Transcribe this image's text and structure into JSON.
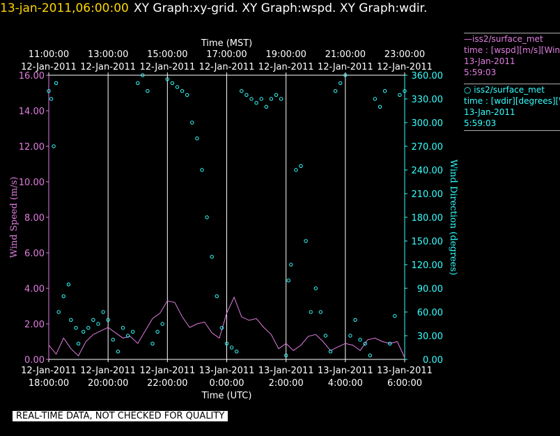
{
  "header": {
    "date_time": "13-jan-2011,06:00:00",
    "graphs": "XY Graph:xy-grid.  XY Graph:wspd.  XY Graph:wdir."
  },
  "legend": [
    {
      "line1": "—iss2/surface_met",
      "line2": "time : [wspd][m/s][Wind",
      "line3": "13-Jan-2011",
      "line4": "5:59:03"
    },
    {
      "line1": "○ iss2/surface_met",
      "line2": "time : [wdir][degrees][W",
      "line3": "13-Jan-2011",
      "line4": "5:59:03"
    }
  ],
  "footer": {
    "note": "REAL-TIME DATA, NOT CHECKED FOR QUALITY"
  },
  "colors": {
    "wspd": "#e07ee0",
    "wdir": "#35ffff",
    "axis": "#ffffff",
    "background": "#000000"
  },
  "chart_data": {
    "type": "scatter",
    "top_axis_label": "Time (MST)",
    "bottom_axis_label": "Time (UTC)",
    "ylabel_left": "Wind Speed (m/s)",
    "ylabel_right": "Wind Direction (degrees)",
    "xlim_utc_hours": [
      18,
      30
    ],
    "ylim_left": [
      0,
      16
    ],
    "ylim_right": [
      0,
      360
    ],
    "grid": "vertical lines every 2 hours",
    "top_ticks": [
      {
        "time": "11:00:00",
        "date": "12-Jan-2011"
      },
      {
        "time": "13:00:00",
        "date": "12-Jan-2011"
      },
      {
        "time": "15:00:00",
        "date": "12-Jan-2011"
      },
      {
        "time": "17:00:00",
        "date": "12-Jan-2011"
      },
      {
        "time": "19:00:00",
        "date": "12-Jan-2011"
      },
      {
        "time": "21:00:00",
        "date": "12-Jan-2011"
      },
      {
        "time": "23:00:00",
        "date": "12-Jan-2011"
      }
    ],
    "bottom_ticks": [
      {
        "date": "12-Jan-2011",
        "time": "18:00:00"
      },
      {
        "date": "12-Jan-2011",
        "time": "20:00:00"
      },
      {
        "date": "12-Jan-2011",
        "time": "22:00:00"
      },
      {
        "date": "13-Jan-2011",
        "time": "0:00:00"
      },
      {
        "date": "13-Jan-2011",
        "time": "2:00:00"
      },
      {
        "date": "13-Jan-2011",
        "time": "4:00:00"
      },
      {
        "date": "13-Jan-2011",
        "time": "6:00:00"
      }
    ],
    "left_ticks": [
      "0.00",
      "2.00",
      "4.00",
      "6.00",
      "8.00",
      "10.00",
      "12.00",
      "14.00",
      "16.00"
    ],
    "right_ticks": [
      "0.00",
      "30.00",
      "60.00",
      "90.00",
      "120.00",
      "150.00",
      "180.00",
      "210.00",
      "240.00",
      "270.00",
      "300.00",
      "330.00",
      "360.00"
    ],
    "series": [
      {
        "name": "iss2/surface_met time : [wspd][m/s][Wind",
        "style": "line",
        "axis": "left",
        "x": [
          "12-Jan-2011 18:00",
          "12-Jan-2011 18:15",
          "12-Jan-2011 18:30",
          "12-Jan-2011 18:45",
          "12-Jan-2011 19:00",
          "12-Jan-2011 19:15",
          "12-Jan-2011 19:30",
          "12-Jan-2011 19:45",
          "12-Jan-2011 20:00",
          "12-Jan-2011 20:15",
          "12-Jan-2011 20:30",
          "12-Jan-2011 20:45",
          "12-Jan-2011 21:00",
          "12-Jan-2011 21:15",
          "12-Jan-2011 21:30",
          "12-Jan-2011 21:45",
          "12-Jan-2011 22:00",
          "12-Jan-2011 22:15",
          "12-Jan-2011 22:30",
          "12-Jan-2011 22:45",
          "12-Jan-2011 23:00",
          "12-Jan-2011 23:15",
          "12-Jan-2011 23:30",
          "12-Jan-2011 23:45",
          "13-Jan-2011 00:00",
          "13-Jan-2011 00:15",
          "13-Jan-2011 00:30",
          "13-Jan-2011 00:45",
          "13-Jan-2011 01:00",
          "13-Jan-2011 01:15",
          "13-Jan-2011 01:30",
          "13-Jan-2011 01:45",
          "13-Jan-2011 02:00",
          "13-Jan-2011 02:15",
          "13-Jan-2011 02:30",
          "13-Jan-2011 02:45",
          "13-Jan-2011 03:00",
          "13-Jan-2011 03:15",
          "13-Jan-2011 03:30",
          "13-Jan-2011 03:45",
          "13-Jan-2011 04:00",
          "13-Jan-2011 04:15",
          "13-Jan-2011 04:30",
          "13-Jan-2011 04:45",
          "13-Jan-2011 05:00",
          "13-Jan-2011 05:15",
          "13-Jan-2011 05:30",
          "13-Jan-2011 05:45",
          "13-Jan-2011 06:00"
        ],
        "y": [
          0.8,
          0.3,
          1.2,
          0.6,
          0.2,
          1.0,
          1.4,
          1.6,
          1.8,
          1.5,
          1.2,
          1.3,
          0.9,
          1.6,
          2.3,
          2.6,
          3.3,
          3.2,
          2.4,
          1.8,
          2.0,
          2.1,
          1.5,
          1.2,
          2.6,
          3.5,
          2.4,
          2.2,
          2.3,
          1.8,
          1.4,
          0.6,
          0.9,
          0.5,
          0.8,
          1.3,
          1.4,
          1.0,
          0.5,
          0.7,
          0.9,
          0.8,
          0.5,
          1.1,
          1.2,
          1.0,
          0.9,
          1.0,
          0.1
        ]
      },
      {
        "name": "iss2/surface_met time : [wdir][degrees][W",
        "style": "markers",
        "axis": "right",
        "x": [
          "12-Jan-2011 18:00",
          "12-Jan-2011 18:05",
          "12-Jan-2011 18:10",
          "12-Jan-2011 18:15",
          "12-Jan-2011 18:20",
          "12-Jan-2011 18:30",
          "12-Jan-2011 18:40",
          "12-Jan-2011 18:45",
          "12-Jan-2011 18:55",
          "12-Jan-2011 19:00",
          "12-Jan-2011 19:10",
          "12-Jan-2011 19:20",
          "12-Jan-2011 19:30",
          "12-Jan-2011 19:40",
          "12-Jan-2011 19:50",
          "12-Jan-2011 20:00",
          "12-Jan-2011 20:10",
          "12-Jan-2011 20:20",
          "12-Jan-2011 20:30",
          "12-Jan-2011 20:40",
          "12-Jan-2011 20:50",
          "12-Jan-2011 21:00",
          "12-Jan-2011 21:10",
          "12-Jan-2011 21:20",
          "12-Jan-2011 21:30",
          "12-Jan-2011 21:40",
          "12-Jan-2011 21:50",
          "12-Jan-2011 22:00",
          "12-Jan-2011 22:10",
          "12-Jan-2011 22:20",
          "12-Jan-2011 22:30",
          "12-Jan-2011 22:40",
          "12-Jan-2011 22:50",
          "12-Jan-2011 23:00",
          "12-Jan-2011 23:10",
          "12-Jan-2011 23:20",
          "12-Jan-2011 23:30",
          "12-Jan-2011 23:40",
          "12-Jan-2011 23:50",
          "13-Jan-2011 00:00",
          "13-Jan-2011 00:10",
          "13-Jan-2011 00:20",
          "13-Jan-2011 00:30",
          "13-Jan-2011 00:40",
          "13-Jan-2011 00:50",
          "13-Jan-2011 01:00",
          "13-Jan-2011 01:10",
          "13-Jan-2011 01:20",
          "13-Jan-2011 01:30",
          "13-Jan-2011 01:40",
          "13-Jan-2011 01:50",
          "13-Jan-2011 02:00",
          "13-Jan-2011 02:05",
          "13-Jan-2011 02:10",
          "13-Jan-2011 02:20",
          "13-Jan-2011 02:30",
          "13-Jan-2011 02:40",
          "13-Jan-2011 02:50",
          "13-Jan-2011 03:00",
          "13-Jan-2011 03:10",
          "13-Jan-2011 03:20",
          "13-Jan-2011 03:30",
          "13-Jan-2011 03:40",
          "13-Jan-2011 03:50",
          "13-Jan-2011 04:00",
          "13-Jan-2011 04:10",
          "13-Jan-2011 04:20",
          "13-Jan-2011 04:30",
          "13-Jan-2011 04:40",
          "13-Jan-2011 04:50",
          "13-Jan-2011 05:00",
          "13-Jan-2011 05:10",
          "13-Jan-2011 05:20",
          "13-Jan-2011 05:30",
          "13-Jan-2011 05:40",
          "13-Jan-2011 05:50",
          "13-Jan-2011 06:00"
        ],
        "y": [
          340,
          330,
          270,
          350,
          60,
          80,
          95,
          50,
          40,
          20,
          35,
          40,
          50,
          45,
          60,
          50,
          25,
          10,
          40,
          30,
          35,
          350,
          360,
          340,
          20,
          35,
          45,
          355,
          350,
          345,
          340,
          335,
          300,
          280,
          240,
          180,
          130,
          80,
          40,
          20,
          15,
          10,
          340,
          335,
          330,
          325,
          330,
          320,
          330,
          335,
          330,
          5,
          100,
          120,
          240,
          245,
          150,
          60,
          90,
          60,
          30,
          10,
          340,
          350,
          360,
          30,
          50,
          25,
          20,
          5,
          330,
          320,
          340,
          20,
          55,
          335,
          340
        ]
      }
    ]
  }
}
